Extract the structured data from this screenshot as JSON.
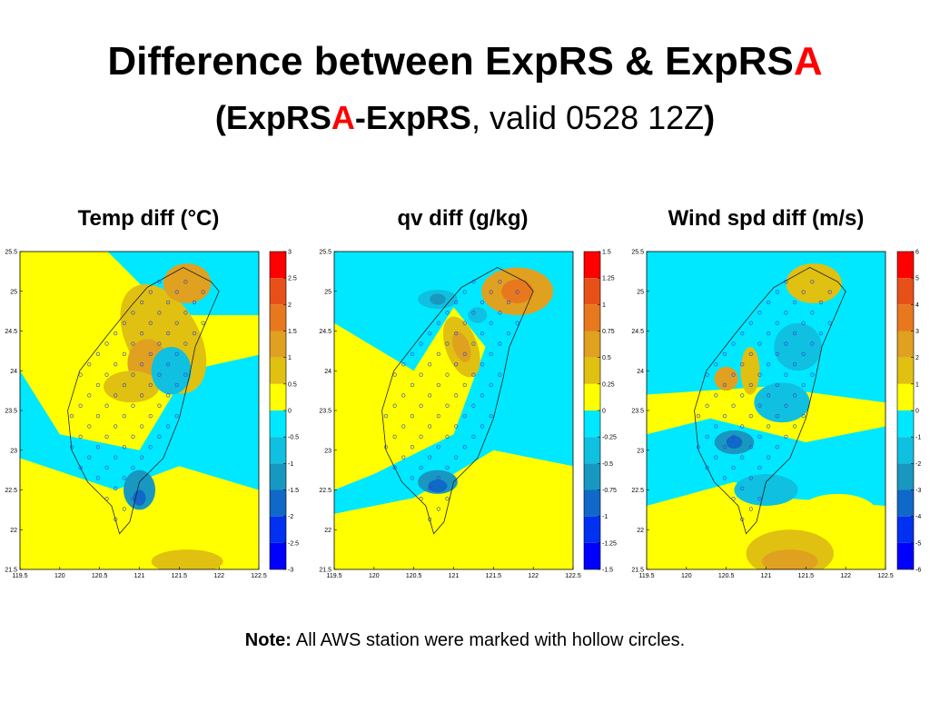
{
  "header": {
    "title": {
      "text": "Difference between ExpRS & ExpRS",
      "highlight": "A"
    },
    "subtitle": [
      {
        "text": "(",
        "style": "bold"
      },
      {
        "text": "ExpRS",
        "style": "bold"
      },
      {
        "text": "A",
        "style": "bold-red"
      },
      {
        "text": "-ExpRS",
        "style": "bold"
      },
      {
        "text": ", valid 0528 12Z",
        "style": "normal"
      },
      {
        "text": ")",
        "style": "bold"
      }
    ]
  },
  "xticks": [
    119.5,
    120,
    120.5,
    121,
    121.5,
    122,
    122.5
  ],
  "yticks": [
    25.5,
    25,
    24.5,
    24,
    23.5,
    23,
    22.5,
    22,
    21.5
  ],
  "colors": [
    "#ff0000",
    "#e8501a",
    "#e8781e",
    "#e0a020",
    "#e0c010",
    "#ffff00",
    "#00e8ff",
    "#10c0e0",
    "#1898c0",
    "#1068c8",
    "#0030f0",
    "#0000ff"
  ],
  "panels": [
    {
      "title": "Temp diff (°C)",
      "cbticks": [
        3,
        2.5,
        2,
        1.5,
        1,
        0.5,
        0,
        -0.5,
        -1,
        -1.5,
        -2,
        -2.5,
        -3
      ]
    },
    {
      "title": "qv diff (g/kg)",
      "cbticks": [
        1.5,
        1.25,
        1,
        0.75,
        0.5,
        0.25,
        0,
        -0.25,
        -0.5,
        -0.75,
        -1,
        -1.25,
        -1.5
      ]
    },
    {
      "title": "Wind spd diff (m/s)",
      "cbticks": [
        6,
        5,
        4,
        3,
        2,
        1,
        0,
        -1,
        -2,
        -3,
        -4,
        -5,
        -6
      ]
    }
  ],
  "note": {
    "label": "Note:",
    "text": "All AWS station were marked with hollow circles."
  }
}
